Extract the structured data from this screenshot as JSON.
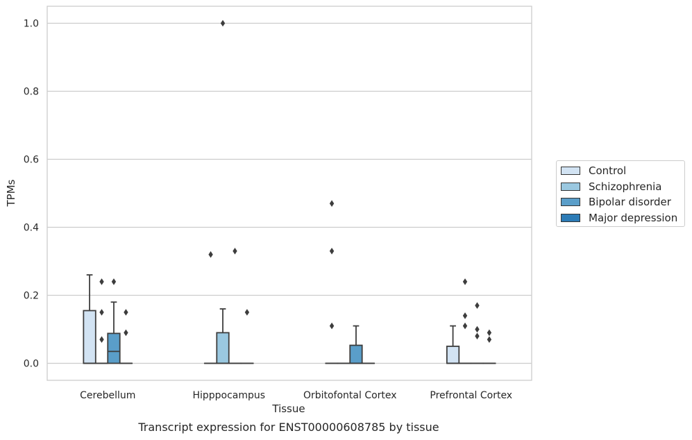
{
  "chart_data": {
    "type": "box",
    "title": "Transcript expression for ENST00000608785 by tissue",
    "xlabel": "Tissue",
    "ylabel": "TPMs",
    "ylim": [
      -0.05,
      1.05
    ],
    "yticks": [
      0.0,
      0.2,
      0.4,
      0.6,
      0.8,
      1.0
    ],
    "ytick_labels": [
      "0.0",
      "0.2",
      "0.4",
      "0.6",
      "0.8",
      "1.0"
    ],
    "grid": true,
    "legend_position": "right",
    "categories": [
      "Cerebellum",
      "Hipppocampus",
      "Orbitofontal Cortex",
      "Prefrontal Cortex"
    ],
    "series": [
      {
        "name": "Control",
        "color": "#d2e3f3",
        "boxes": [
          {
            "q1": 0.0,
            "median": 0.0,
            "q3": 0.155,
            "whislo": 0.0,
            "whishi": 0.26,
            "fliers": []
          },
          {
            "q1": 0.0,
            "median": 0.0,
            "q3": 0.0,
            "whislo": 0.0,
            "whishi": 0.0,
            "fliers": [
              0.32
            ]
          },
          {
            "q1": 0.0,
            "median": 0.0,
            "q3": 0.0,
            "whislo": 0.0,
            "whishi": 0.0,
            "fliers": [
              0.11,
              0.33,
              0.47
            ]
          },
          {
            "q1": 0.0,
            "median": 0.0,
            "q3": 0.05,
            "whislo": 0.0,
            "whishi": 0.11,
            "fliers": []
          }
        ]
      },
      {
        "name": "Schizophrenia",
        "color": "#9ac8e0",
        "boxes": [
          {
            "q1": 0.0,
            "median": 0.0,
            "q3": 0.0,
            "whislo": 0.0,
            "whishi": 0.0,
            "fliers": [
              0.07,
              0.15,
              0.24
            ]
          },
          {
            "q1": 0.0,
            "median": 0.0,
            "q3": 0.09,
            "whislo": 0.0,
            "whishi": 0.16,
            "fliers": [
              1.0
            ]
          },
          {
            "q1": 0.0,
            "median": 0.0,
            "q3": 0.0,
            "whislo": 0.0,
            "whishi": 0.0,
            "fliers": []
          },
          {
            "q1": 0.0,
            "median": 0.0,
            "q3": 0.0,
            "whislo": 0.0,
            "whishi": 0.0,
            "fliers": [
              0.11,
              0.14,
              0.24
            ]
          }
        ]
      },
      {
        "name": "Bipolar disorder",
        "color": "#5a9ec9",
        "boxes": [
          {
            "q1": 0.0,
            "median": 0.035,
            "q3": 0.088,
            "whislo": 0.0,
            "whishi": 0.18,
            "fliers": [
              0.24
            ]
          },
          {
            "q1": 0.0,
            "median": 0.0,
            "q3": 0.0,
            "whislo": 0.0,
            "whishi": 0.0,
            "fliers": [
              0.33
            ]
          },
          {
            "q1": 0.0,
            "median": 0.0,
            "q3": 0.053,
            "whislo": 0.0,
            "whishi": 0.11,
            "fliers": []
          },
          {
            "q1": 0.0,
            "median": 0.0,
            "q3": 0.0,
            "whislo": 0.0,
            "whishi": 0.0,
            "fliers": [
              0.08,
              0.1,
              0.17
            ]
          }
        ]
      },
      {
        "name": "Major depression",
        "color": "#2c7bb6",
        "boxes": [
          {
            "q1": 0.0,
            "median": 0.0,
            "q3": 0.0,
            "whislo": 0.0,
            "whishi": 0.0,
            "fliers": [
              0.09,
              0.15
            ]
          },
          {
            "q1": 0.0,
            "median": 0.0,
            "q3": 0.0,
            "whislo": 0.0,
            "whishi": 0.0,
            "fliers": [
              0.15
            ]
          },
          {
            "q1": 0.0,
            "median": 0.0,
            "q3": 0.0,
            "whislo": 0.0,
            "whishi": 0.0,
            "fliers": []
          },
          {
            "q1": 0.0,
            "median": 0.0,
            "q3": 0.0,
            "whislo": 0.0,
            "whishi": 0.0,
            "fliers": [
              0.07,
              0.09
            ]
          }
        ]
      }
    ]
  }
}
